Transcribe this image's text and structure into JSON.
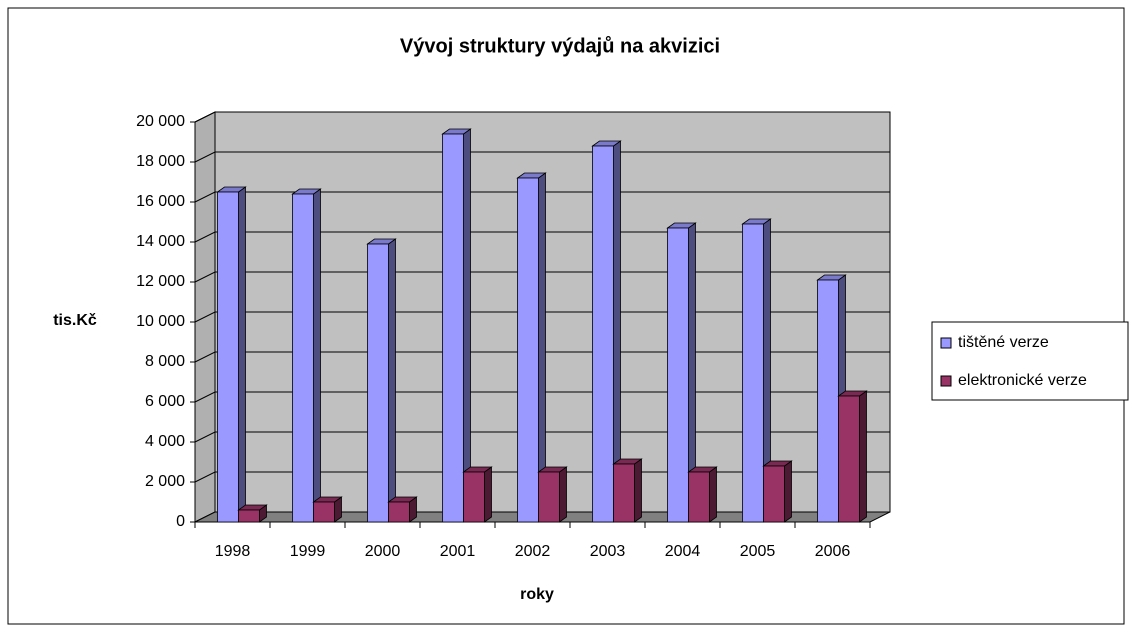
{
  "chart_data": {
    "type": "bar3d",
    "title": "Vývoj struktury výdajů na akvizici",
    "x_label": "roky",
    "y_label": "tis.Kč",
    "categories": [
      "1998",
      "1999",
      "2000",
      "2001",
      "2002",
      "2003",
      "2004",
      "2005",
      "2006"
    ],
    "series": [
      {
        "name": "tištěné verze",
        "color": "#9999ff",
        "values": [
          16500,
          16400,
          13900,
          19400,
          17200,
          18800,
          14700,
          14900,
          12100
        ]
      },
      {
        "name": "elektronické verze",
        "color": "#993366",
        "values": [
          600,
          1000,
          1000,
          2500,
          2500,
          2900,
          2500,
          2800,
          6300
        ]
      }
    ],
    "ylim": [
      0,
      20000
    ],
    "yticks": [
      0,
      {
        "value": 2000,
        "label": "2 000"
      },
      {
        "value": 4000,
        "label": "4 000"
      },
      {
        "value": 6000,
        "label": "6 000"
      },
      {
        "value": 8000,
        "label": "8 000"
      },
      {
        "value": 10000,
        "label": "10 000"
      },
      {
        "value": 12000,
        "label": "12 000"
      },
      {
        "value": 14000,
        "label": "14 000"
      },
      {
        "value": 16000,
        "label": "16 000"
      },
      {
        "value": 18000,
        "label": "18 000"
      },
      {
        "value": 20000,
        "label": "20 000"
      }
    ],
    "grid": true,
    "legend": "right"
  }
}
